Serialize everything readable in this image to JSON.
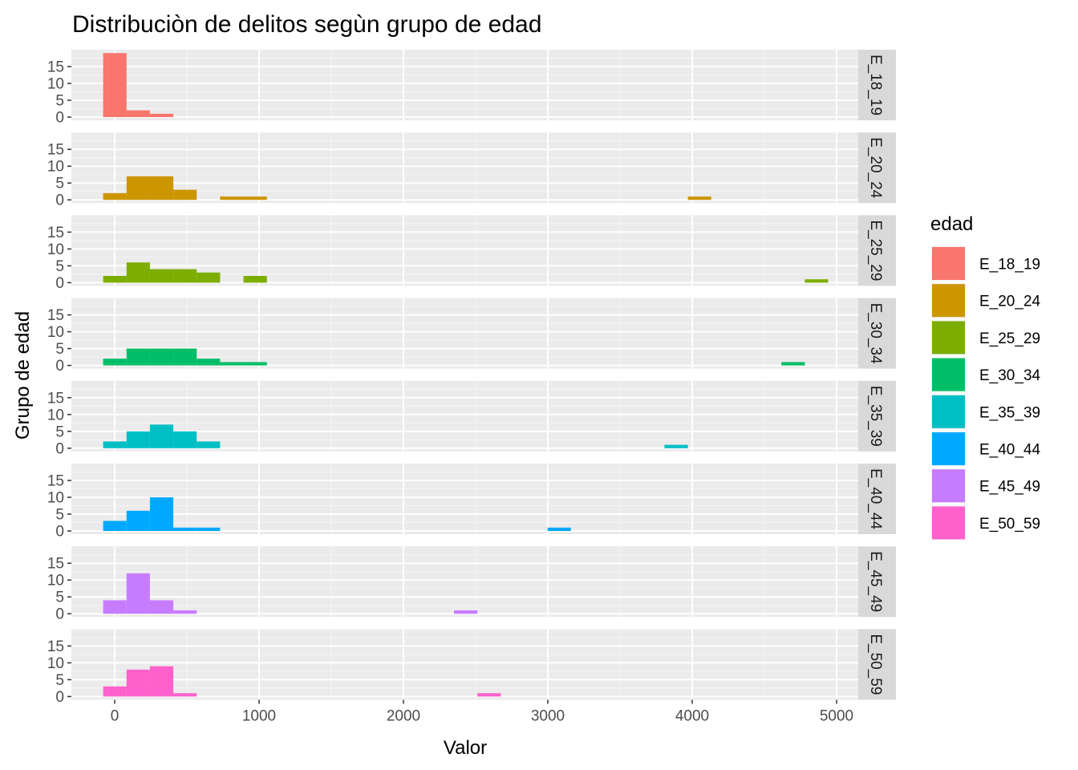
{
  "chart_data": {
    "type": "bar",
    "subtype": "faceted-histogram",
    "title": "Distribuciòn de delitos segùn grupo de edad",
    "xlabel": "Valor",
    "ylabel": "Grupo de edad",
    "xlim": [
      -300,
      5150
    ],
    "ylim": [
      0,
      20
    ],
    "x_ticks": [
      0,
      1000,
      2000,
      3000,
      4000,
      5000
    ],
    "x_tick_labels": [
      "0",
      "1000",
      "2000",
      "3000",
      "4000",
      "5000"
    ],
    "y_ticks": [
      0,
      5,
      10,
      15
    ],
    "y_tick_labels": [
      "0",
      "5",
      "10",
      "15"
    ],
    "bin_starts": [
      -80,
      82,
      244,
      406,
      568,
      730,
      892,
      1054,
      1216,
      1378,
      1540,
      1702,
      1864,
      2026,
      2188,
      2350,
      2512,
      2674,
      2836,
      2998,
      3160,
      3322,
      3484,
      3646,
      3808,
      3970,
      4132,
      4294,
      4456,
      4618,
      4780
    ],
    "bin_width": 162,
    "grid": true,
    "legend": {
      "title": "edad",
      "position": "right"
    },
    "series": [
      {
        "name": "E_18_19",
        "color": "#F8766D",
        "counts": [
          19,
          2,
          1,
          0,
          0,
          0,
          0,
          0,
          0,
          0,
          0,
          0,
          0,
          0,
          0,
          0,
          0,
          0,
          0,
          0,
          0,
          0,
          0,
          0,
          0,
          0,
          0,
          0,
          0,
          0,
          0
        ]
      },
      {
        "name": "E_20_24",
        "color": "#CD9600",
        "counts": [
          2,
          7,
          7,
          3,
          0,
          1,
          1,
          0,
          0,
          0,
          0,
          0,
          0,
          0,
          0,
          0,
          0,
          0,
          0,
          0,
          0,
          0,
          0,
          0,
          0,
          1,
          0,
          0,
          0,
          0,
          0
        ]
      },
      {
        "name": "E_25_29",
        "color": "#7CAE00",
        "counts": [
          2,
          6,
          4,
          4,
          3,
          0,
          2,
          0,
          0,
          0,
          0,
          0,
          0,
          0,
          0,
          0,
          0,
          0,
          0,
          0,
          0,
          0,
          0,
          0,
          0,
          0,
          0,
          0,
          0,
          0,
          1
        ]
      },
      {
        "name": "E_30_34",
        "color": "#00BE67",
        "counts": [
          2,
          5,
          5,
          5,
          2,
          1,
          1,
          0,
          0,
          0,
          0,
          0,
          0,
          0,
          0,
          0,
          0,
          0,
          0,
          0,
          0,
          0,
          0,
          0,
          0,
          0,
          0,
          0,
          0,
          1,
          0
        ]
      },
      {
        "name": "E_35_39",
        "color": "#00BFC4",
        "counts": [
          2,
          5,
          7,
          5,
          2,
          0,
          0,
          0,
          0,
          0,
          0,
          0,
          0,
          0,
          0,
          0,
          0,
          0,
          0,
          0,
          0,
          0,
          0,
          0,
          1,
          0,
          0,
          0,
          0,
          0,
          0
        ]
      },
      {
        "name": "E_40_44",
        "color": "#00A9FF",
        "counts": [
          3,
          6,
          10,
          1,
          1,
          0,
          0,
          0,
          0,
          0,
          0,
          0,
          0,
          0,
          0,
          0,
          0,
          0,
          0,
          1,
          0,
          0,
          0,
          0,
          0,
          0,
          0,
          0,
          0,
          0,
          0
        ]
      },
      {
        "name": "E_45_49",
        "color": "#C77CFF",
        "counts": [
          4,
          12,
          4,
          1,
          0,
          0,
          0,
          0,
          0,
          0,
          0,
          0,
          0,
          0,
          0,
          1,
          0,
          0,
          0,
          0,
          0,
          0,
          0,
          0,
          0,
          0,
          0,
          0,
          0,
          0,
          0
        ]
      },
      {
        "name": "E_50_59",
        "color": "#FF61CC",
        "counts": [
          3,
          8,
          9,
          1,
          0,
          0,
          0,
          0,
          0,
          0,
          0,
          0,
          0,
          0,
          0,
          0,
          1,
          0,
          0,
          0,
          0,
          0,
          0,
          0,
          0,
          0,
          0,
          0,
          0,
          0,
          0
        ]
      }
    ]
  }
}
